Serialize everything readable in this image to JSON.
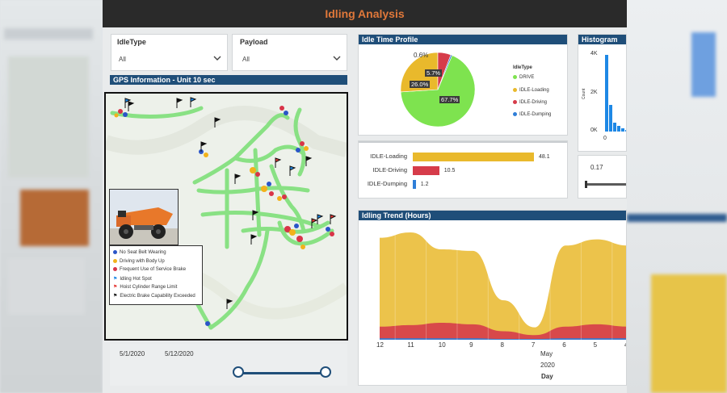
{
  "header": {
    "title": "Idling Analysis"
  },
  "filters": [
    {
      "label": "IdleType",
      "value": "All"
    },
    {
      "label": "Payload",
      "value": "All"
    }
  ],
  "map_panel": {
    "title": "GPS Information - Unit 10 sec",
    "legend": [
      {
        "label": "No Seat Belt Wearing",
        "color": "#2a55c8",
        "shape": "dot"
      },
      {
        "label": "Driving with Body Up",
        "color": "#f2b21b",
        "shape": "dot"
      },
      {
        "label": "Frequent Use of Service Brake",
        "color": "#d93448",
        "shape": "dot"
      },
      {
        "label": "Idling Hot Spot",
        "color": "#1e88e5",
        "shape": "flag"
      },
      {
        "label": "Hoist Cylinder Range Limit",
        "color": "#e53935",
        "shape": "flag"
      },
      {
        "label": "Electric Brake Capability Exceeded",
        "color": "#111111",
        "shape": "flag"
      }
    ]
  },
  "date_slider": {
    "start": "5/1/2020",
    "end": "5/12/2020"
  },
  "idle_profile": {
    "title": "Idle Time Profile",
    "legend_title": "IdleType",
    "slices": [
      {
        "name": "DRIVE",
        "value": 67.7,
        "label": "67.7%",
        "color": "#7ee34f"
      },
      {
        "name": "IDLE-Loading",
        "value": 26.0,
        "label": "26.0%",
        "color": "#e9b92c"
      },
      {
        "name": "IDLE-Driving",
        "value": 5.7,
        "label": "5.7%",
        "color": "#d63c4a"
      },
      {
        "name": "IDLE-Dumping",
        "value": 0.6,
        "label": "0.6%",
        "color": "#2f7ed8"
      }
    ]
  },
  "idle_bars": {
    "rows": [
      {
        "label": "IDLE-Loading",
        "value": 48.1,
        "display": "48.1",
        "color": "#e9b92c"
      },
      {
        "label": "IDLE-Driving",
        "value": 10.5,
        "display": "10.5",
        "color": "#d63c4a"
      },
      {
        "label": "IDLE-Dumping",
        "value": 1.2,
        "display": "1.2",
        "color": "#2f7ed8"
      }
    ],
    "max": 48.1
  },
  "histogram": {
    "title": "Histogram",
    "y_title": "Count",
    "y_ticks": [
      "4K",
      "2K",
      "0K"
    ],
    "x_tick": "0",
    "slider_value": "0.17",
    "bars": [
      1.0,
      0.35,
      0.12,
      0.07,
      0.04,
      0.02
    ]
  },
  "trend": {
    "title": "Idling Trend (Hours)",
    "x_ticks": [
      "12",
      "11",
      "10",
      "9",
      "8",
      "7",
      "6",
      "5",
      "4"
    ],
    "month": "May",
    "year": "2020",
    "axis_title": "Day",
    "chart_data": {
      "type": "area",
      "title": "Idling Trend (Hours)",
      "xlabel": "Day",
      "categories": [
        "12",
        "11",
        "10",
        "9",
        "8",
        "7",
        "6",
        "5",
        "4"
      ],
      "series": [
        {
          "name": "IDLE-Dumping",
          "color": "#2f7ed8",
          "values": [
            0.2,
            0.2,
            0.2,
            0.2,
            0.1,
            0.1,
            0.2,
            0.2,
            0.2
          ]
        },
        {
          "name": "IDLE-Driving",
          "color": "#d63c4a",
          "values": [
            1.5,
            1.7,
            2.0,
            1.8,
            1.0,
            0.5,
            1.5,
            1.8,
            1.5
          ]
        },
        {
          "name": "IDLE-Loading",
          "color": "#e9b92c",
          "values": [
            11.5,
            12.0,
            9.5,
            9.5,
            4.0,
            1.0,
            10.5,
            11.0,
            10.5
          ]
        }
      ],
      "ylim": [
        0,
        14
      ],
      "grid": false
    }
  }
}
